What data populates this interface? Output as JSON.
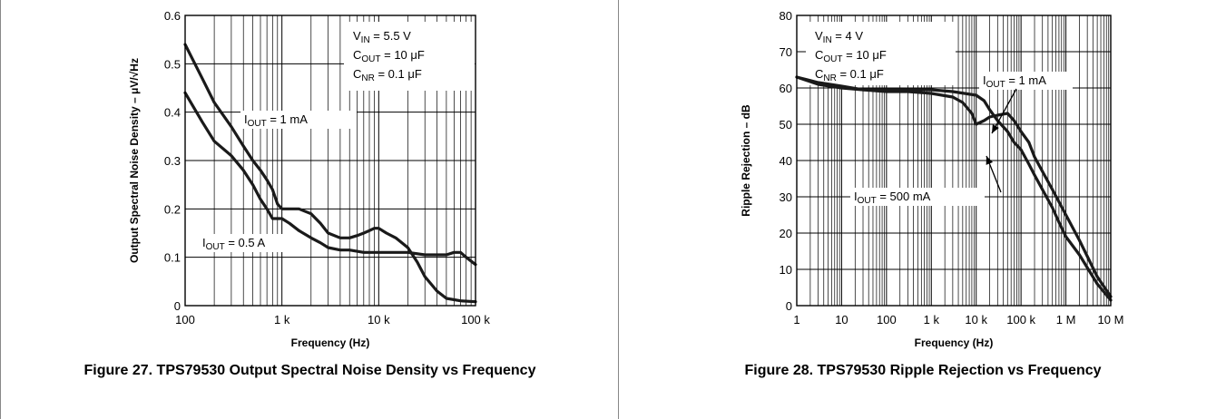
{
  "chart_data": [
    {
      "type": "line",
      "caption": "Figure 27. TPS79530 Output Spectral Noise Density vs Frequency",
      "xlabel": "Frequency (Hz)",
      "ylabel": "Output Spectral Noise Density – μV/√Hz",
      "x_scale": "log",
      "xlim": [
        100,
        100000
      ],
      "ylim": [
        0,
        0.6
      ],
      "grid": true,
      "x_ticks": [
        100,
        1000,
        10000,
        100000
      ],
      "x_tick_labels": [
        "100",
        "1 k",
        "10 k",
        "100 k"
      ],
      "y_ticks": [
        0,
        0.1,
        0.2,
        0.3,
        0.4,
        0.5,
        0.6
      ],
      "y_tick_labels": [
        "0",
        "0.1",
        "0.2",
        "0.3",
        "0.4",
        "0.5",
        "0.6"
      ],
      "conditions": [
        {
          "main": "V",
          "sub": "IN",
          "rest": " = 5.5 V"
        },
        {
          "main": "C",
          "sub": "OUT",
          "rest": " = 10 μF"
        },
        {
          "main": "C",
          "sub": "NR",
          "rest": " = 0.1 μF"
        }
      ],
      "series": [
        {
          "label_main": "I",
          "label_sub": "OUT",
          "label_rest": " = 1 mA",
          "x": [
            100,
            150,
            200,
            300,
            400,
            500,
            600,
            700,
            800,
            900,
            1000,
            1200,
            1500,
            2000,
            2500,
            3000,
            4000,
            5000,
            6000,
            7000,
            8000,
            9000,
            10000,
            12000,
            15000,
            20000,
            25000,
            30000,
            40000,
            50000,
            70000,
            100000
          ],
          "y": [
            0.54,
            0.47,
            0.42,
            0.37,
            0.33,
            0.3,
            0.28,
            0.26,
            0.24,
            0.21,
            0.2,
            0.2,
            0.2,
            0.19,
            0.17,
            0.15,
            0.14,
            0.14,
            0.145,
            0.15,
            0.155,
            0.16,
            0.16,
            0.15,
            0.14,
            0.12,
            0.09,
            0.06,
            0.03,
            0.015,
            0.01,
            0.008
          ]
        },
        {
          "label_main": "I",
          "label_sub": "OUT",
          "label_rest": " = 0.5 A",
          "x": [
            100,
            150,
            200,
            300,
            400,
            500,
            600,
            700,
            800,
            900,
            1000,
            1200,
            1500,
            2000,
            2500,
            3000,
            4000,
            5000,
            7000,
            10000,
            15000,
            20000,
            30000,
            40000,
            50000,
            60000,
            70000,
            80000,
            100000
          ],
          "y": [
            0.44,
            0.38,
            0.34,
            0.31,
            0.28,
            0.25,
            0.22,
            0.2,
            0.18,
            0.18,
            0.18,
            0.17,
            0.155,
            0.14,
            0.13,
            0.12,
            0.115,
            0.115,
            0.11,
            0.11,
            0.11,
            0.11,
            0.105,
            0.105,
            0.105,
            0.11,
            0.11,
            0.1,
            0.085
          ]
        }
      ]
    },
    {
      "type": "line",
      "caption": "Figure 28. TPS79530 Ripple Rejection vs Frequency",
      "xlabel": "Frequency (Hz)",
      "ylabel": "Ripple Rejection – dB",
      "x_scale": "log",
      "xlim": [
        1,
        10000000
      ],
      "ylim": [
        0,
        80
      ],
      "grid": true,
      "x_ticks": [
        1,
        10,
        100,
        1000,
        10000,
        100000,
        1000000,
        10000000
      ],
      "x_tick_labels": [
        "1",
        "10",
        "100",
        "1 k",
        "10 k",
        "100 k",
        "1 M",
        "10 M"
      ],
      "y_ticks": [
        0,
        10,
        20,
        30,
        40,
        50,
        60,
        70,
        80
      ],
      "y_tick_labels": [
        "0",
        "10",
        "20",
        "30",
        "40",
        "50",
        "60",
        "70",
        "80"
      ],
      "conditions": [
        {
          "main": "V",
          "sub": "IN",
          "rest": " = 4 V"
        },
        {
          "main": "C",
          "sub": "OUT",
          "rest": " = 10 μF"
        },
        {
          "main": "C",
          "sub": "NR",
          "rest": " = 0.1 μF"
        }
      ],
      "series": [
        {
          "label_main": "I",
          "label_sub": "OUT",
          "label_rest": " = 1 mA",
          "x": [
            1,
            3,
            10,
            30,
            100,
            300,
            1000,
            3000,
            5000,
            8000,
            10000,
            15000,
            20000,
            30000,
            50000,
            70000,
            100000,
            150000,
            200000,
            300000,
            500000,
            1000000,
            2000000,
            5000000,
            10000000
          ],
          "y": [
            63,
            61.5,
            60.5,
            59.5,
            59,
            59,
            58.5,
            57.5,
            56,
            53,
            50,
            51,
            52,
            52.5,
            53,
            51,
            48,
            45,
            41,
            37,
            32,
            25,
            18,
            8,
            2.5
          ]
        },
        {
          "label_main": "I",
          "label_sub": "OUT",
          "label_rest": " = 500 mA",
          "x": [
            1,
            3,
            10,
            30,
            100,
            300,
            1000,
            3000,
            10000,
            15000,
            20000,
            30000,
            50000,
            70000,
            100000,
            150000,
            200000,
            300000,
            500000,
            700000,
            1000000,
            2000000,
            5000000,
            10000000
          ],
          "y": [
            63,
            61,
            60,
            59.5,
            59.5,
            59.5,
            59.5,
            59,
            58,
            56.5,
            54,
            51,
            48,
            45,
            43,
            39,
            36,
            32,
            27,
            23,
            19,
            14,
            6,
            1.5
          ]
        }
      ]
    }
  ]
}
